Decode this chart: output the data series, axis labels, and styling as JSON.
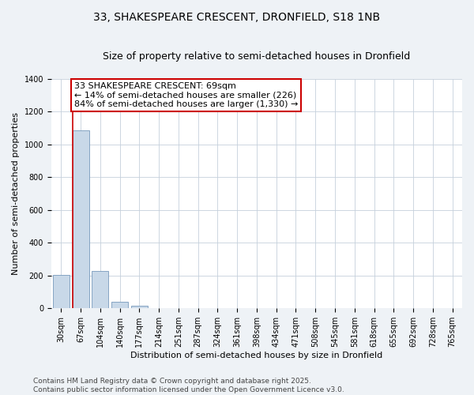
{
  "title_line1": "33, SHAKESPEARE CRESCENT, DRONFIELD, S18 1NB",
  "title_line2": "Size of property relative to semi-detached houses in Dronfield",
  "xlabel": "Distribution of semi-detached houses by size in Dronfield",
  "ylabel": "Number of semi-detached properties",
  "categories": [
    "30sqm",
    "67sqm",
    "104sqm",
    "140sqm",
    "177sqm",
    "214sqm",
    "251sqm",
    "287sqm",
    "324sqm",
    "361sqm",
    "398sqm",
    "434sqm",
    "471sqm",
    "508sqm",
    "545sqm",
    "581sqm",
    "618sqm",
    "655sqm",
    "692sqm",
    "728sqm",
    "765sqm"
  ],
  "values": [
    205,
    1085,
    230,
    40,
    15,
    0,
    0,
    0,
    0,
    0,
    0,
    0,
    0,
    0,
    0,
    0,
    0,
    0,
    0,
    0,
    0
  ],
  "bar_color": "#c8d8e8",
  "bar_edge_color": "#7799bb",
  "highlight_bar_index": 1,
  "highlight_line_color": "#cc0000",
  "annotation_text": "33 SHAKESPEARE CRESCENT: 69sqm\n← 14% of semi-detached houses are smaller (226)\n84% of semi-detached houses are larger (1,330) →",
  "annotation_box_color": "#ffffff",
  "annotation_box_edge_color": "#cc0000",
  "ylim": [
    0,
    1400
  ],
  "yticks": [
    0,
    200,
    400,
    600,
    800,
    1000,
    1200,
    1400
  ],
  "footer_line1": "Contains HM Land Registry data © Crown copyright and database right 2025.",
  "footer_line2": "Contains public sector information licensed under the Open Government Licence v3.0.",
  "background_color": "#eef2f6",
  "plot_background_color": "#ffffff",
  "grid_color": "#c5d0dc",
  "title_fontsize": 10,
  "subtitle_fontsize": 9,
  "annotation_fontsize": 8,
  "footer_fontsize": 6.5,
  "tick_fontsize": 7,
  "ylabel_fontsize": 8,
  "xlabel_fontsize": 8
}
